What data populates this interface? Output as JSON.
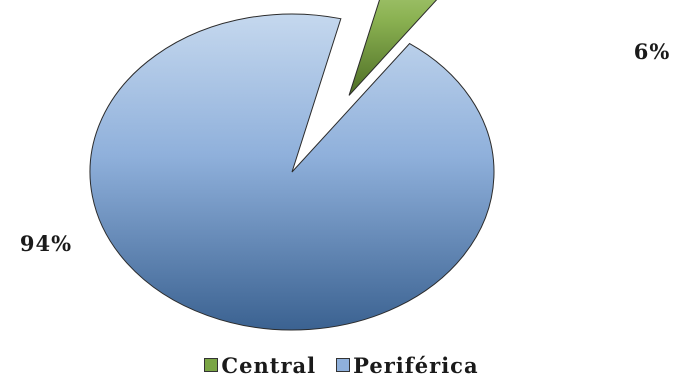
{
  "chart_data": {
    "type": "pie",
    "title": "",
    "categories": [
      "Central",
      "Periférica"
    ],
    "values": [
      6,
      94
    ],
    "labels": [
      "6%",
      "94%"
    ],
    "colors": [
      "#6f9640",
      "#7fa1d1"
    ],
    "legend": {
      "position": "bottom",
      "entries": [
        "Central",
        "Periférica"
      ]
    },
    "exploded": "Central"
  }
}
